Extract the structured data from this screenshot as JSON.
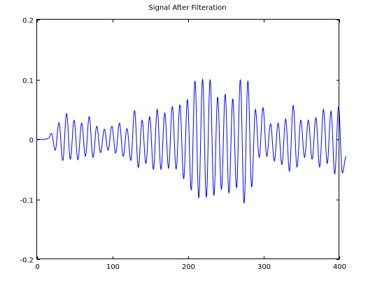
{
  "chart_data": {
    "type": "line",
    "title": "Signal After Filteration",
    "xlabel": "",
    "ylabel": "",
    "xlim": [
      0,
      400
    ],
    "ylim": [
      -0.2,
      0.2
    ],
    "grid": false,
    "x_ticks": [
      "0",
      "100",
      "200",
      "300",
      "400"
    ],
    "y_ticks": [
      "0.2",
      "0.1",
      "0",
      "-0.1",
      "-0.2"
    ],
    "series": [
      {
        "color": "#0000ff",
        "peaks": [
          [
            0,
            0.0
          ],
          [
            5,
            0.0
          ],
          [
            10,
            0.0
          ],
          [
            15,
            0.002
          ],
          [
            19,
            0.01
          ],
          [
            24,
            -0.018
          ],
          [
            29,
            0.028
          ],
          [
            34,
            -0.035
          ],
          [
            39,
            0.043
          ],
          [
            44,
            -0.033
          ],
          [
            49,
            0.032
          ],
          [
            54,
            -0.034
          ],
          [
            59,
            0.027
          ],
          [
            64,
            -0.028
          ],
          [
            69,
            0.038
          ],
          [
            74,
            -0.03
          ],
          [
            79,
            0.022
          ],
          [
            84,
            -0.022
          ],
          [
            89,
            0.017
          ],
          [
            94,
            -0.018
          ],
          [
            99,
            0.022
          ],
          [
            104,
            -0.023
          ],
          [
            109,
            0.027
          ],
          [
            114,
            -0.028
          ],
          [
            119,
            0.018
          ],
          [
            124,
            -0.035
          ],
          [
            129,
            0.048
          ],
          [
            134,
            -0.047
          ],
          [
            139,
            0.032
          ],
          [
            144,
            -0.04
          ],
          [
            149,
            0.038
          ],
          [
            154,
            -0.05
          ],
          [
            159,
            0.05
          ],
          [
            164,
            -0.05
          ],
          [
            169,
            0.044
          ],
          [
            174,
            -0.048
          ],
          [
            179,
            0.055
          ],
          [
            184,
            -0.05
          ],
          [
            189,
            0.058
          ],
          [
            194,
            -0.066
          ],
          [
            199,
            0.067
          ],
          [
            204,
            -0.085
          ],
          [
            209,
            0.098
          ],
          [
            214,
            -0.098
          ],
          [
            219,
            0.101
          ],
          [
            224,
            -0.097
          ],
          [
            229,
            0.1
          ],
          [
            234,
            -0.094
          ],
          [
            239,
            0.071
          ],
          [
            244,
            -0.084
          ],
          [
            249,
            0.076
          ],
          [
            254,
            -0.09
          ],
          [
            259,
            0.068
          ],
          [
            264,
            -0.081
          ],
          [
            269,
            0.1
          ],
          [
            274,
            -0.107
          ],
          [
            279,
            0.098
          ],
          [
            284,
            -0.08
          ],
          [
            289,
            0.05
          ],
          [
            294,
            -0.03
          ],
          [
            299,
            0.053
          ],
          [
            304,
            -0.028
          ],
          [
            309,
            0.026
          ],
          [
            314,
            -0.036
          ],
          [
            319,
            0.027
          ],
          [
            324,
            -0.042
          ],
          [
            329,
            0.034
          ],
          [
            334,
            -0.053
          ],
          [
            339,
            0.057
          ],
          [
            344,
            -0.046
          ],
          [
            349,
            0.032
          ],
          [
            354,
            -0.03
          ],
          [
            359,
            0.032
          ],
          [
            364,
            -0.033
          ],
          [
            369,
            0.036
          ],
          [
            374,
            -0.046
          ],
          [
            379,
            0.05
          ],
          [
            384,
            -0.04
          ],
          [
            389,
            0.047
          ],
          [
            394,
            -0.058
          ],
          [
            399,
            0.055
          ],
          [
            404,
            -0.056
          ],
          [
            409,
            -0.028
          ]
        ]
      }
    ]
  }
}
